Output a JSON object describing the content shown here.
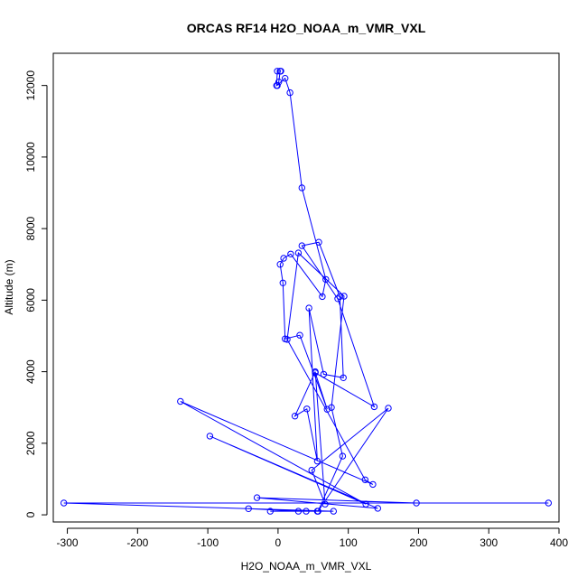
{
  "chart_data": {
    "type": "line",
    "title": "ORCAS RF14 H2O_NOAA_m_VMR_VXL",
    "xlabel": "H2O_NOAA_m_VMR_VXL",
    "ylabel": "Altitude (m)",
    "xlim": [
      -320,
      400
    ],
    "ylim": [
      -200,
      12900
    ],
    "xticks": [
      -300,
      -200,
      -100,
      0,
      100,
      200,
      300,
      400
    ],
    "yticks": [
      0,
      2000,
      4000,
      6000,
      8000,
      10000,
      12000
    ],
    "grid": false,
    "legend": "none",
    "marker": "open-circle",
    "color": "#0000ff",
    "series": [
      {
        "x": [
          -1,
          1,
          3,
          4,
          -1,
          -2,
          10,
          17,
          34,
          68,
          63,
          18,
          8,
          3,
          7,
          10,
          31,
          70,
          53,
          137,
          85,
          34,
          58,
          88,
          93,
          65,
          44,
          56,
          41,
          24,
          53,
          67,
          48,
          157,
          57,
          92,
          76,
          94,
          29,
          13,
          124,
          135,
          -139,
          125,
          -97,
          142,
          -30,
          197,
          385,
          -305,
          79,
          40,
          -11,
          29,
          -42,
          56
        ],
        "y": [
          12000,
          12100,
          12400,
          12400,
          12400,
          12000,
          12200,
          11800,
          9140,
          6580,
          6100,
          7290,
          7170,
          7000,
          6480,
          4920,
          5020,
          2950,
          3970,
          3020,
          6040,
          7520,
          7620,
          6100,
          3830,
          3930,
          5780,
          1500,
          2960,
          2760,
          4000,
          300,
          1250,
          2980,
          100,
          1640,
          3000,
          6110,
          7320,
          4900,
          980,
          850,
          3170,
          300,
          2200,
          180,
          480,
          330,
          330,
          330,
          100,
          100,
          100,
          100,
          170,
          100
        ]
      }
    ]
  }
}
